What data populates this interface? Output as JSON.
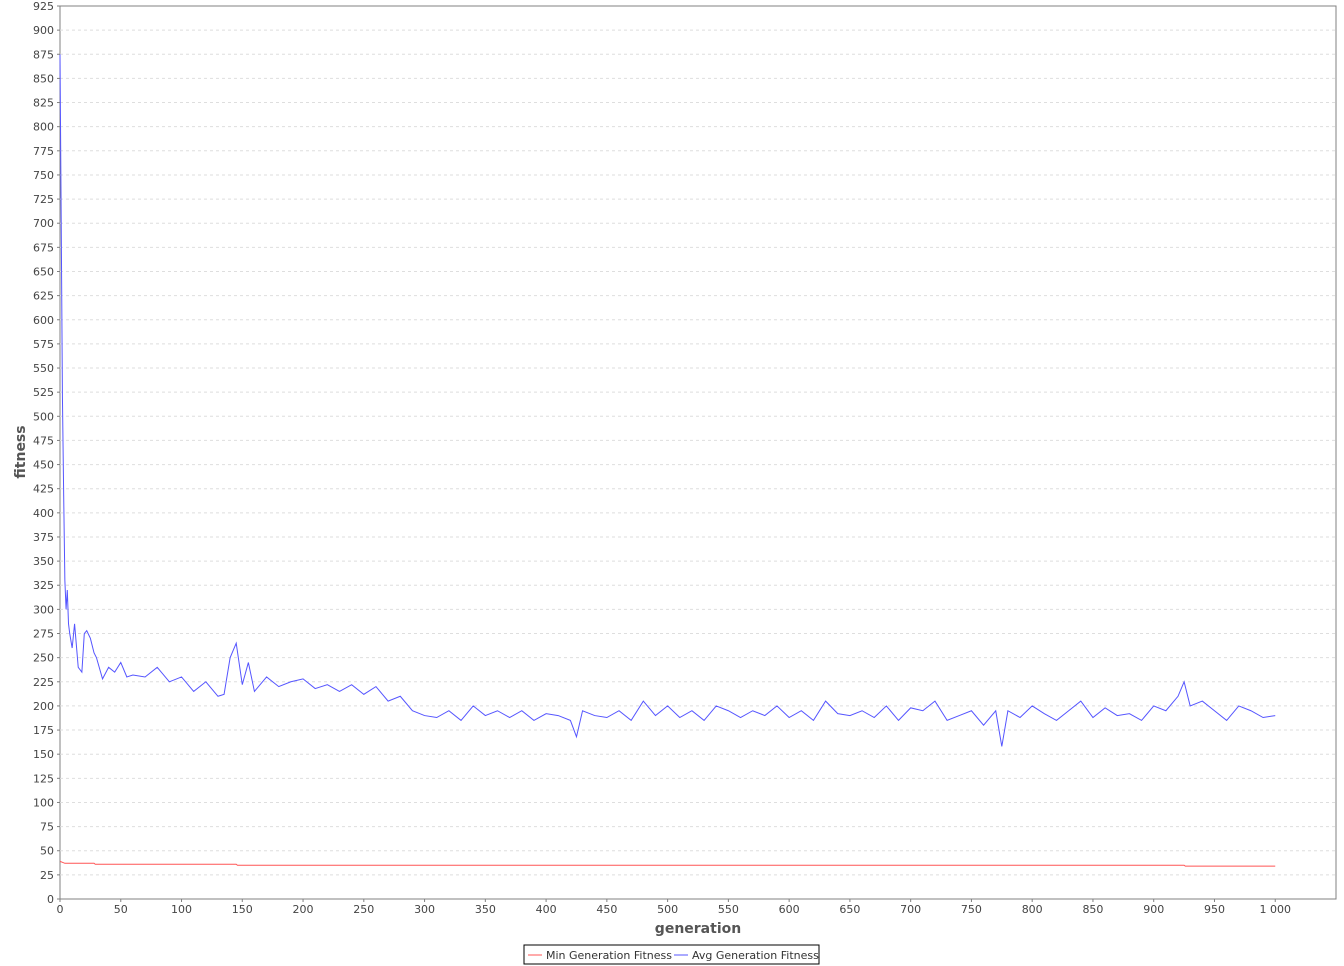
{
  "chart_data": {
    "type": "line",
    "title": "",
    "xlabel": "generation",
    "ylabel": "fitness",
    "xlim": [
      0,
      1050
    ],
    "ylim": [
      0,
      925
    ],
    "x_ticks": [
      0,
      50,
      100,
      150,
      200,
      250,
      300,
      350,
      400,
      450,
      500,
      550,
      600,
      650,
      700,
      750,
      800,
      850,
      900,
      950,
      1000
    ],
    "x_tick_labels": [
      "0",
      "50",
      "100",
      "150",
      "200",
      "250",
      "300",
      "350",
      "400",
      "450",
      "500",
      "550",
      "600",
      "650",
      "700",
      "750",
      "800",
      "850",
      "900",
      "950",
      "1 000"
    ],
    "y_ticks": [
      0,
      25,
      50,
      75,
      100,
      125,
      150,
      175,
      200,
      225,
      250,
      275,
      300,
      325,
      350,
      375,
      400,
      425,
      450,
      475,
      500,
      525,
      550,
      575,
      600,
      625,
      650,
      675,
      700,
      725,
      750,
      775,
      800,
      825,
      850,
      875,
      900,
      925
    ],
    "grid": true,
    "legend_position": "bottom",
    "series": [
      {
        "name": "Min Generation Fitness",
        "color": "#ff5555",
        "x": [
          0,
          2,
          4,
          28,
          29,
          145,
          146,
          925,
          926,
          1000
        ],
        "y": [
          39,
          38,
          37,
          37,
          36,
          36,
          35,
          35,
          34,
          34
        ]
      },
      {
        "name": "Avg Generation Fitness",
        "color": "#5555ff",
        "x": [
          0,
          1,
          2,
          3,
          4,
          5,
          6,
          7,
          8,
          10,
          12,
          15,
          18,
          20,
          22,
          25,
          28,
          30,
          35,
          40,
          45,
          50,
          55,
          60,
          70,
          80,
          90,
          100,
          110,
          120,
          130,
          135,
          140,
          145,
          150,
          155,
          160,
          170,
          180,
          190,
          200,
          210,
          220,
          230,
          240,
          250,
          260,
          270,
          280,
          290,
          300,
          310,
          320,
          330,
          340,
          350,
          360,
          370,
          380,
          390,
          400,
          410,
          420,
          425,
          430,
          440,
          450,
          460,
          470,
          480,
          490,
          500,
          510,
          520,
          530,
          540,
          550,
          560,
          570,
          580,
          590,
          600,
          610,
          620,
          630,
          640,
          650,
          660,
          670,
          680,
          690,
          700,
          710,
          720,
          730,
          740,
          750,
          760,
          770,
          775,
          780,
          790,
          800,
          810,
          820,
          830,
          840,
          850,
          860,
          870,
          880,
          890,
          900,
          910,
          920,
          925,
          930,
          940,
          950,
          960,
          970,
          980,
          990,
          1000
        ],
        "y": [
          875,
          700,
          520,
          420,
          330,
          300,
          320,
          285,
          275,
          260,
          285,
          240,
          235,
          275,
          278,
          270,
          255,
          250,
          228,
          240,
          235,
          245,
          230,
          232,
          230,
          240,
          225,
          230,
          215,
          225,
          210,
          212,
          250,
          265,
          222,
          245,
          215,
          230,
          220,
          225,
          228,
          218,
          222,
          215,
          222,
          212,
          220,
          205,
          210,
          195,
          190,
          188,
          195,
          185,
          200,
          190,
          195,
          188,
          195,
          185,
          192,
          190,
          185,
          168,
          195,
          190,
          188,
          195,
          185,
          205,
          190,
          200,
          188,
          195,
          185,
          200,
          195,
          188,
          195,
          190,
          200,
          188,
          195,
          185,
          205,
          192,
          190,
          195,
          188,
          200,
          185,
          198,
          195,
          205,
          185,
          190,
          195,
          180,
          195,
          158,
          195,
          188,
          200,
          192,
          185,
          195,
          205,
          188,
          198,
          190,
          192,
          185,
          200,
          195,
          210,
          225,
          200,
          205,
          195,
          185,
          200,
          195,
          188,
          190
        ]
      }
    ]
  }
}
